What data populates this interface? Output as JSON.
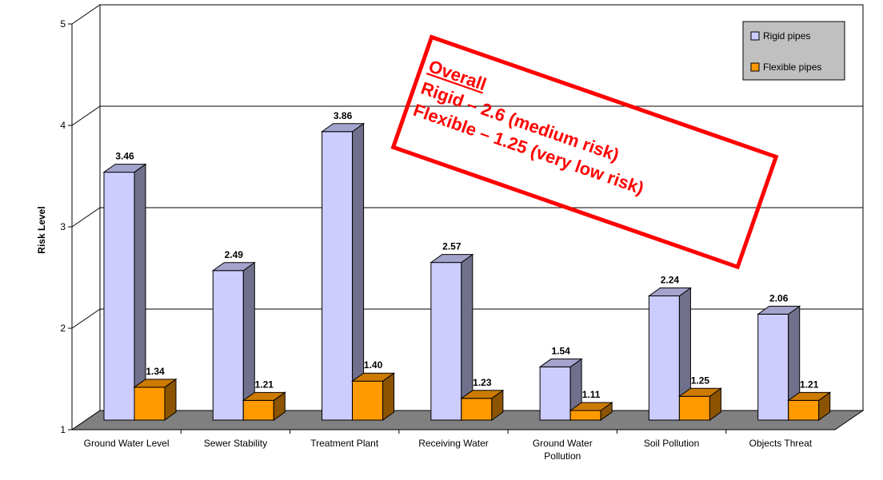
{
  "chart_data": {
    "type": "bar",
    "ylabel": "Risk Level",
    "ylim": [
      1,
      5
    ],
    "yticks": [
      1,
      2,
      3,
      4,
      5
    ],
    "grid": true,
    "legend_position": "top-right",
    "categories": [
      [
        "Ground Water Level"
      ],
      [
        "Sewer Stability"
      ],
      [
        "Treatment Plant"
      ],
      [
        "Receiving Water"
      ],
      [
        "Ground Water",
        "Pollution"
      ],
      [
        "Soil Pollution"
      ],
      [
        "Objects Threat"
      ]
    ],
    "series": [
      {
        "name": "Rigid pipes",
        "color": "#ccccff",
        "values": [
          3.46,
          2.49,
          3.86,
          2.57,
          1.54,
          2.24,
          2.06
        ]
      },
      {
        "name": "Flexible pipes",
        "color": "#ff9900",
        "values": [
          1.34,
          1.21,
          1.4,
          1.23,
          1.11,
          1.25,
          1.21
        ]
      }
    ],
    "annotation": {
      "lines": [
        "Overall",
        "Rigid – 2.6 (medium risk)",
        "Flexible – 1.25 (very low risk)"
      ],
      "color": "#ff0000"
    }
  }
}
